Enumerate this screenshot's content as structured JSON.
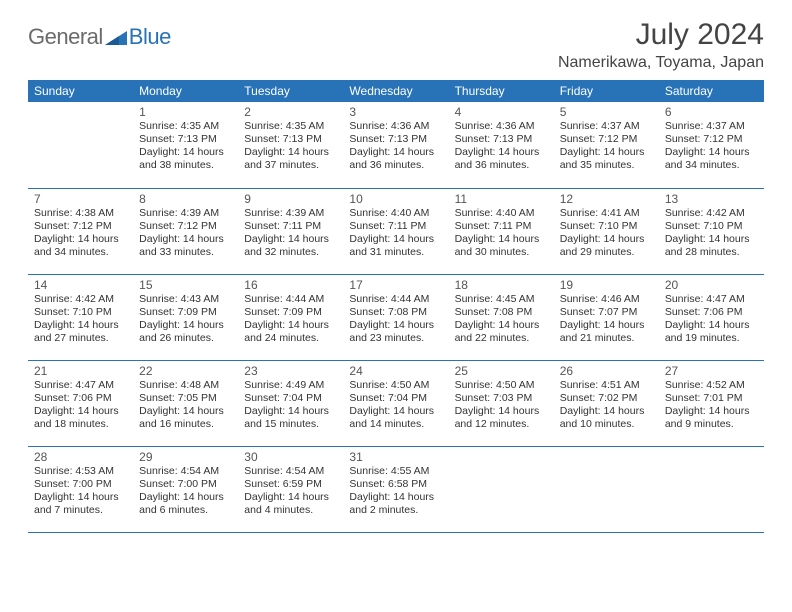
{
  "brand": {
    "text1": "General",
    "text2": "Blue"
  },
  "title": "July 2024",
  "location": "Namerikawa, Toyama, Japan",
  "styling": {
    "header_bg": "#2872b8",
    "header_fg": "#ffffff",
    "border_color": "#2872b8",
    "page_bg": "#ffffff",
    "text_color": "#333333",
    "muted_text": "#6b6b6b",
    "title_color": "#444444",
    "month_fontsize": 30,
    "location_fontsize": 16,
    "dayhead_fontsize": 12,
    "cell_fontsize": 10.5,
    "columns": 7,
    "rows": 5
  },
  "day_headers": [
    "Sunday",
    "Monday",
    "Tuesday",
    "Wednesday",
    "Thursday",
    "Friday",
    "Saturday"
  ],
  "weeks": [
    [
      null,
      {
        "n": "1",
        "sr": "Sunrise: 4:35 AM",
        "ss": "Sunset: 7:13 PM",
        "d1": "Daylight: 14 hours",
        "d2": "and 38 minutes."
      },
      {
        "n": "2",
        "sr": "Sunrise: 4:35 AM",
        "ss": "Sunset: 7:13 PM",
        "d1": "Daylight: 14 hours",
        "d2": "and 37 minutes."
      },
      {
        "n": "3",
        "sr": "Sunrise: 4:36 AM",
        "ss": "Sunset: 7:13 PM",
        "d1": "Daylight: 14 hours",
        "d2": "and 36 minutes."
      },
      {
        "n": "4",
        "sr": "Sunrise: 4:36 AM",
        "ss": "Sunset: 7:13 PM",
        "d1": "Daylight: 14 hours",
        "d2": "and 36 minutes."
      },
      {
        "n": "5",
        "sr": "Sunrise: 4:37 AM",
        "ss": "Sunset: 7:12 PM",
        "d1": "Daylight: 14 hours",
        "d2": "and 35 minutes."
      },
      {
        "n": "6",
        "sr": "Sunrise: 4:37 AM",
        "ss": "Sunset: 7:12 PM",
        "d1": "Daylight: 14 hours",
        "d2": "and 34 minutes."
      }
    ],
    [
      {
        "n": "7",
        "sr": "Sunrise: 4:38 AM",
        "ss": "Sunset: 7:12 PM",
        "d1": "Daylight: 14 hours",
        "d2": "and 34 minutes."
      },
      {
        "n": "8",
        "sr": "Sunrise: 4:39 AM",
        "ss": "Sunset: 7:12 PM",
        "d1": "Daylight: 14 hours",
        "d2": "and 33 minutes."
      },
      {
        "n": "9",
        "sr": "Sunrise: 4:39 AM",
        "ss": "Sunset: 7:11 PM",
        "d1": "Daylight: 14 hours",
        "d2": "and 32 minutes."
      },
      {
        "n": "10",
        "sr": "Sunrise: 4:40 AM",
        "ss": "Sunset: 7:11 PM",
        "d1": "Daylight: 14 hours",
        "d2": "and 31 minutes."
      },
      {
        "n": "11",
        "sr": "Sunrise: 4:40 AM",
        "ss": "Sunset: 7:11 PM",
        "d1": "Daylight: 14 hours",
        "d2": "and 30 minutes."
      },
      {
        "n": "12",
        "sr": "Sunrise: 4:41 AM",
        "ss": "Sunset: 7:10 PM",
        "d1": "Daylight: 14 hours",
        "d2": "and 29 minutes."
      },
      {
        "n": "13",
        "sr": "Sunrise: 4:42 AM",
        "ss": "Sunset: 7:10 PM",
        "d1": "Daylight: 14 hours",
        "d2": "and 28 minutes."
      }
    ],
    [
      {
        "n": "14",
        "sr": "Sunrise: 4:42 AM",
        "ss": "Sunset: 7:10 PM",
        "d1": "Daylight: 14 hours",
        "d2": "and 27 minutes."
      },
      {
        "n": "15",
        "sr": "Sunrise: 4:43 AM",
        "ss": "Sunset: 7:09 PM",
        "d1": "Daylight: 14 hours",
        "d2": "and 26 minutes."
      },
      {
        "n": "16",
        "sr": "Sunrise: 4:44 AM",
        "ss": "Sunset: 7:09 PM",
        "d1": "Daylight: 14 hours",
        "d2": "and 24 minutes."
      },
      {
        "n": "17",
        "sr": "Sunrise: 4:44 AM",
        "ss": "Sunset: 7:08 PM",
        "d1": "Daylight: 14 hours",
        "d2": "and 23 minutes."
      },
      {
        "n": "18",
        "sr": "Sunrise: 4:45 AM",
        "ss": "Sunset: 7:08 PM",
        "d1": "Daylight: 14 hours",
        "d2": "and 22 minutes."
      },
      {
        "n": "19",
        "sr": "Sunrise: 4:46 AM",
        "ss": "Sunset: 7:07 PM",
        "d1": "Daylight: 14 hours",
        "d2": "and 21 minutes."
      },
      {
        "n": "20",
        "sr": "Sunrise: 4:47 AM",
        "ss": "Sunset: 7:06 PM",
        "d1": "Daylight: 14 hours",
        "d2": "and 19 minutes."
      }
    ],
    [
      {
        "n": "21",
        "sr": "Sunrise: 4:47 AM",
        "ss": "Sunset: 7:06 PM",
        "d1": "Daylight: 14 hours",
        "d2": "and 18 minutes."
      },
      {
        "n": "22",
        "sr": "Sunrise: 4:48 AM",
        "ss": "Sunset: 7:05 PM",
        "d1": "Daylight: 14 hours",
        "d2": "and 16 minutes."
      },
      {
        "n": "23",
        "sr": "Sunrise: 4:49 AM",
        "ss": "Sunset: 7:04 PM",
        "d1": "Daylight: 14 hours",
        "d2": "and 15 minutes."
      },
      {
        "n": "24",
        "sr": "Sunrise: 4:50 AM",
        "ss": "Sunset: 7:04 PM",
        "d1": "Daylight: 14 hours",
        "d2": "and 14 minutes."
      },
      {
        "n": "25",
        "sr": "Sunrise: 4:50 AM",
        "ss": "Sunset: 7:03 PM",
        "d1": "Daylight: 14 hours",
        "d2": "and 12 minutes."
      },
      {
        "n": "26",
        "sr": "Sunrise: 4:51 AM",
        "ss": "Sunset: 7:02 PM",
        "d1": "Daylight: 14 hours",
        "d2": "and 10 minutes."
      },
      {
        "n": "27",
        "sr": "Sunrise: 4:52 AM",
        "ss": "Sunset: 7:01 PM",
        "d1": "Daylight: 14 hours",
        "d2": "and 9 minutes."
      }
    ],
    [
      {
        "n": "28",
        "sr": "Sunrise: 4:53 AM",
        "ss": "Sunset: 7:00 PM",
        "d1": "Daylight: 14 hours",
        "d2": "and 7 minutes."
      },
      {
        "n": "29",
        "sr": "Sunrise: 4:54 AM",
        "ss": "Sunset: 7:00 PM",
        "d1": "Daylight: 14 hours",
        "d2": "and 6 minutes."
      },
      {
        "n": "30",
        "sr": "Sunrise: 4:54 AM",
        "ss": "Sunset: 6:59 PM",
        "d1": "Daylight: 14 hours",
        "d2": "and 4 minutes."
      },
      {
        "n": "31",
        "sr": "Sunrise: 4:55 AM",
        "ss": "Sunset: 6:58 PM",
        "d1": "Daylight: 14 hours",
        "d2": "and 2 minutes."
      },
      null,
      null,
      null
    ]
  ]
}
